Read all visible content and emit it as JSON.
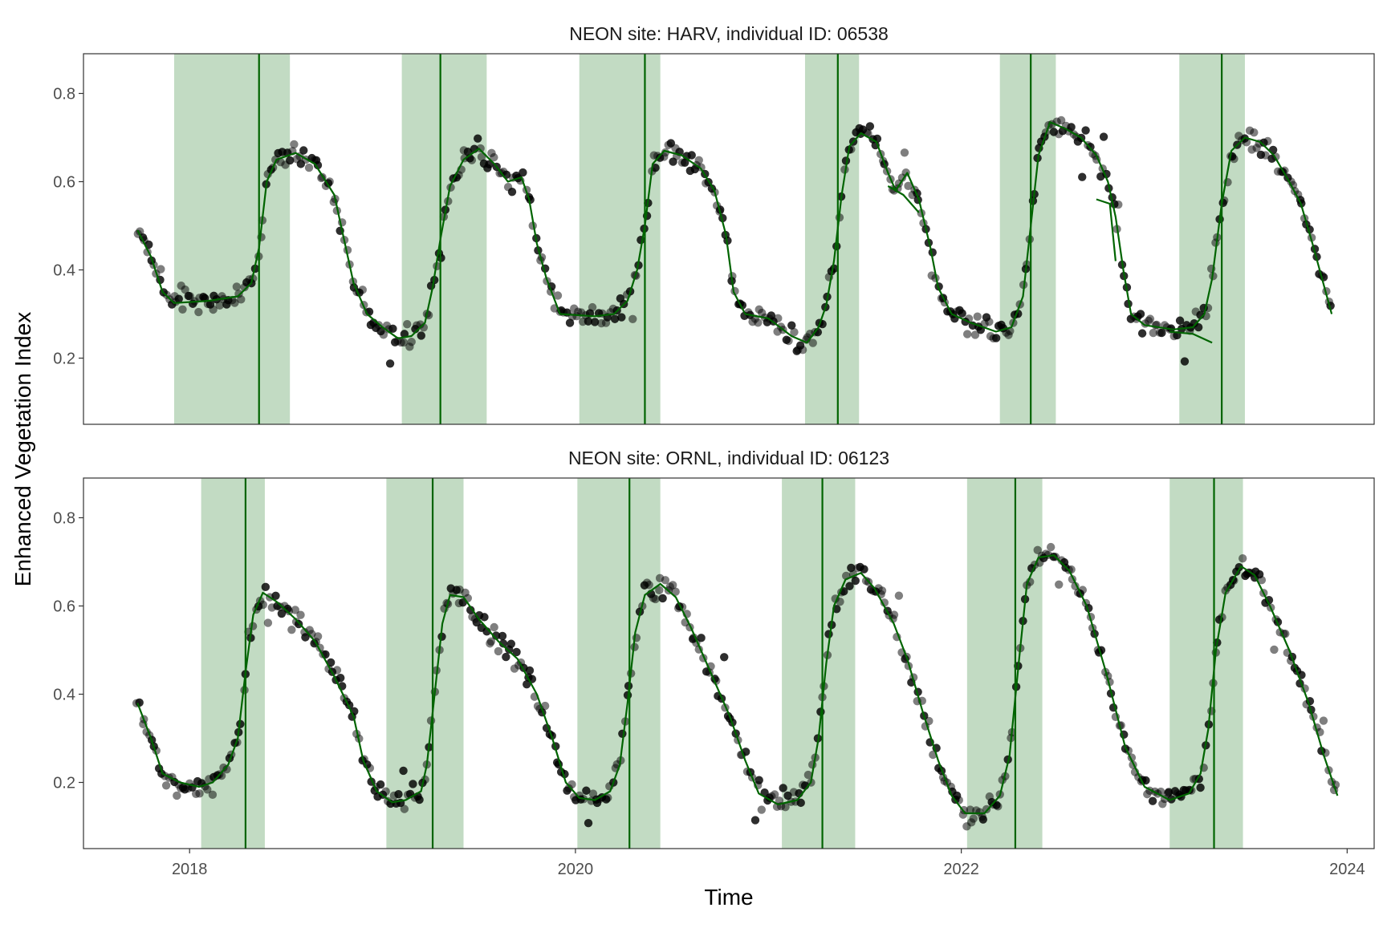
{
  "chart_data": {
    "type": "scatter",
    "xlabel": "Time",
    "ylabel": "Enhanced Vegetation Index",
    "xlim": [
      2017.45,
      2024.14
    ],
    "x_ticks": [
      2018,
      2020,
      2022,
      2024
    ],
    "x_tick_labels": [
      "2018",
      "2020",
      "2022",
      "2024"
    ],
    "ylim": [
      0.05,
      0.89
    ],
    "y_ticks": [
      0.2,
      0.4,
      0.6,
      0.8
    ],
    "y_tick_labels": [
      "0.2",
      "0.4",
      "0.6",
      "0.8"
    ],
    "colors": {
      "band": "#c2dbc3",
      "line": "#006400",
      "point": "#000000",
      "panel_border": "#333333",
      "axis_tick": "#333333"
    },
    "panels": [
      {
        "title": "NEON site: HARV, individual ID: 06538",
        "spring_windows": [
          [
            2017.92,
            2018.52
          ],
          [
            2019.1,
            2019.54
          ],
          [
            2020.02,
            2020.44
          ],
          [
            2021.19,
            2021.47
          ],
          [
            2022.2,
            2022.49
          ],
          [
            2023.13,
            2023.47
          ]
        ],
        "green_up_dates": [
          2018.36,
          2019.3,
          2020.36,
          2021.36,
          2022.36,
          2023.35
        ],
        "fitted_curve": [
          [
            [
              2017.73,
              0.49
            ],
            [
              2017.8,
              0.43
            ],
            [
              2017.86,
              0.35
            ],
            [
              2017.92,
              0.325
            ],
            [
              2018.1,
              0.33
            ],
            [
              2018.25,
              0.34
            ],
            [
              2018.32,
              0.37
            ],
            [
              2018.36,
              0.45
            ],
            [
              2018.4,
              0.6
            ],
            [
              2018.45,
              0.65
            ],
            [
              2018.55,
              0.665
            ],
            [
              2018.65,
              0.64
            ],
            [
              2018.75,
              0.57
            ],
            [
              2018.8,
              0.47
            ],
            [
              2018.85,
              0.37
            ],
            [
              2018.92,
              0.3
            ],
            [
              2019.0,
              0.27
            ],
            [
              2019.08,
              0.245
            ],
            [
              2019.15,
              0.25
            ],
            [
              2019.22,
              0.28
            ],
            [
              2019.26,
              0.36
            ],
            [
              2019.3,
              0.47
            ],
            [
              2019.35,
              0.59
            ],
            [
              2019.42,
              0.65
            ],
            [
              2019.5,
              0.675
            ],
            [
              2019.58,
              0.64
            ],
            [
              2019.65,
              0.6
            ],
            [
              2019.72,
              0.61
            ],
            [
              2019.76,
              0.56
            ],
            [
              2019.8,
              0.46
            ],
            [
              2019.85,
              0.38
            ],
            [
              2019.92,
              0.3
            ],
            [
              2020.1,
              0.295
            ],
            [
              2020.2,
              0.3
            ],
            [
              2020.27,
              0.33
            ],
            [
              2020.32,
              0.4
            ],
            [
              2020.36,
              0.5
            ],
            [
              2020.4,
              0.64
            ],
            [
              2020.46,
              0.67
            ],
            [
              2020.55,
              0.66
            ],
            [
              2020.65,
              0.63
            ],
            [
              2020.72,
              0.58
            ],
            [
              2020.78,
              0.48
            ],
            [
              2020.82,
              0.35
            ],
            [
              2020.88,
              0.3
            ],
            [
              2021.0,
              0.29
            ],
            [
              2021.12,
              0.25
            ],
            [
              2021.2,
              0.235
            ],
            [
              2021.26,
              0.27
            ],
            [
              2021.3,
              0.32
            ],
            [
              2021.34,
              0.42
            ],
            [
              2021.38,
              0.57
            ],
            [
              2021.42,
              0.68
            ],
            [
              2021.48,
              0.71
            ],
            [
              2021.56,
              0.69
            ],
            [
              2021.62,
              0.62
            ],
            [
              2021.66,
              0.58
            ],
            [
              2021.72,
              0.62
            ],
            [
              2021.78,
              0.56
            ],
            [
              2021.84,
              0.45
            ],
            [
              2021.88,
              0.36
            ],
            [
              2021.95,
              0.3
            ],
            [
              2022.05,
              0.28
            ],
            [
              2022.18,
              0.26
            ],
            [
              2022.26,
              0.27
            ],
            [
              2022.32,
              0.34
            ],
            [
              2022.36,
              0.5
            ],
            [
              2022.4,
              0.66
            ],
            [
              2022.46,
              0.735
            ],
            [
              2022.54,
              0.72
            ],
            [
              2022.62,
              0.7
            ],
            [
              2022.7,
              0.66
            ],
            [
              2022.76,
              0.6
            ],
            [
              2022.8,
              0.52
            ],
            [
              2022.84,
              0.4
            ],
            [
              2022.88,
              0.3
            ],
            [
              2022.95,
              0.275
            ],
            [
              2023.1,
              0.265
            ],
            [
              2023.2,
              0.27
            ],
            [
              2023.26,
              0.3
            ],
            [
              2023.3,
              0.38
            ],
            [
              2023.35,
              0.55
            ],
            [
              2023.4,
              0.67
            ],
            [
              2023.47,
              0.7
            ],
            [
              2023.55,
              0.69
            ],
            [
              2023.62,
              0.66
            ],
            [
              2023.7,
              0.6
            ],
            [
              2023.76,
              0.55
            ],
            [
              2023.82,
              0.46
            ],
            [
              2023.87,
              0.38
            ],
            [
              2023.92,
              0.3
            ]
          ],
          [
            [
              2022.7,
              0.56
            ],
            [
              2022.77,
              0.55
            ],
            [
              2022.8,
              0.42
            ]
          ],
          [
            [
              2023.08,
              0.26
            ],
            [
              2023.2,
              0.255
            ],
            [
              2023.3,
              0.235
            ]
          ],
          [
            [
              2021.62,
              0.59
            ],
            [
              2021.7,
              0.57
            ],
            [
              2021.78,
              0.53
            ]
          ]
        ]
      },
      {
        "title": "NEON site: ORNL, individual ID: 06123",
        "spring_windows": [
          [
            2018.06,
            2018.39
          ],
          [
            2019.02,
            2019.42
          ],
          [
            2020.01,
            2020.44
          ],
          [
            2021.07,
            2021.45
          ],
          [
            2022.03,
            2022.42
          ],
          [
            2023.08,
            2023.46
          ]
        ],
        "green_up_dates": [
          2018.29,
          2019.26,
          2020.28,
          2021.28,
          2022.28,
          2023.31
        ],
        "fitted_curve": [
          [
            [
              2017.73,
              0.38
            ],
            [
              2017.8,
              0.3
            ],
            [
              2017.86,
              0.22
            ],
            [
              2017.95,
              0.2
            ],
            [
              2018.05,
              0.19
            ],
            [
              2018.12,
              0.2
            ],
            [
              2018.2,
              0.24
            ],
            [
              2018.25,
              0.3
            ],
            [
              2018.29,
              0.45
            ],
            [
              2018.33,
              0.58
            ],
            [
              2018.38,
              0.63
            ],
            [
              2018.45,
              0.61
            ],
            [
              2018.55,
              0.57
            ],
            [
              2018.65,
              0.52
            ],
            [
              2018.75,
              0.44
            ],
            [
              2018.85,
              0.35
            ],
            [
              2018.9,
              0.25
            ],
            [
              2018.97,
              0.18
            ],
            [
              2019.05,
              0.155
            ],
            [
              2019.12,
              0.16
            ],
            [
              2019.2,
              0.18
            ],
            [
              2019.23,
              0.24
            ],
            [
              2019.27,
              0.4
            ],
            [
              2019.31,
              0.56
            ],
            [
              2019.35,
              0.625
            ],
            [
              2019.42,
              0.62
            ],
            [
              2019.5,
              0.57
            ],
            [
              2019.6,
              0.52
            ],
            [
              2019.7,
              0.48
            ],
            [
              2019.8,
              0.4
            ],
            [
              2019.88,
              0.3
            ],
            [
              2019.95,
              0.2
            ],
            [
              2020.02,
              0.165
            ],
            [
              2020.1,
              0.16
            ],
            [
              2020.18,
              0.18
            ],
            [
              2020.23,
              0.24
            ],
            [
              2020.27,
              0.38
            ],
            [
              2020.31,
              0.54
            ],
            [
              2020.36,
              0.625
            ],
            [
              2020.44,
              0.65
            ],
            [
              2020.52,
              0.62
            ],
            [
              2020.6,
              0.55
            ],
            [
              2020.7,
              0.45
            ],
            [
              2020.8,
              0.35
            ],
            [
              2020.88,
              0.25
            ],
            [
              2020.95,
              0.175
            ],
            [
              2021.05,
              0.15
            ],
            [
              2021.15,
              0.16
            ],
            [
              2021.22,
              0.2
            ],
            [
              2021.26,
              0.3
            ],
            [
              2021.3,
              0.47
            ],
            [
              2021.34,
              0.6
            ],
            [
              2021.4,
              0.66
            ],
            [
              2021.48,
              0.675
            ],
            [
              2021.55,
              0.64
            ],
            [
              2021.65,
              0.56
            ],
            [
              2021.72,
              0.48
            ],
            [
              2021.8,
              0.36
            ],
            [
              2021.88,
              0.25
            ],
            [
              2021.95,
              0.17
            ],
            [
              2022.02,
              0.13
            ],
            [
              2022.12,
              0.13
            ],
            [
              2022.2,
              0.17
            ],
            [
              2022.25,
              0.26
            ],
            [
              2022.3,
              0.48
            ],
            [
              2022.34,
              0.65
            ],
            [
              2022.4,
              0.71
            ],
            [
              2022.48,
              0.715
            ],
            [
              2022.56,
              0.68
            ],
            [
              2022.65,
              0.6
            ],
            [
              2022.75,
              0.45
            ],
            [
              2022.85,
              0.28
            ],
            [
              2022.95,
              0.19
            ],
            [
              2023.08,
              0.16
            ],
            [
              2023.18,
              0.175
            ],
            [
              2023.24,
              0.22
            ],
            [
              2023.28,
              0.32
            ],
            [
              2023.32,
              0.5
            ],
            [
              2023.37,
              0.63
            ],
            [
              2023.45,
              0.69
            ],
            [
              2023.52,
              0.67
            ],
            [
              2023.6,
              0.6
            ],
            [
              2023.7,
              0.5
            ],
            [
              2023.8,
              0.38
            ],
            [
              2023.88,
              0.26
            ],
            [
              2023.95,
              0.17
            ]
          ]
        ]
      }
    ]
  }
}
